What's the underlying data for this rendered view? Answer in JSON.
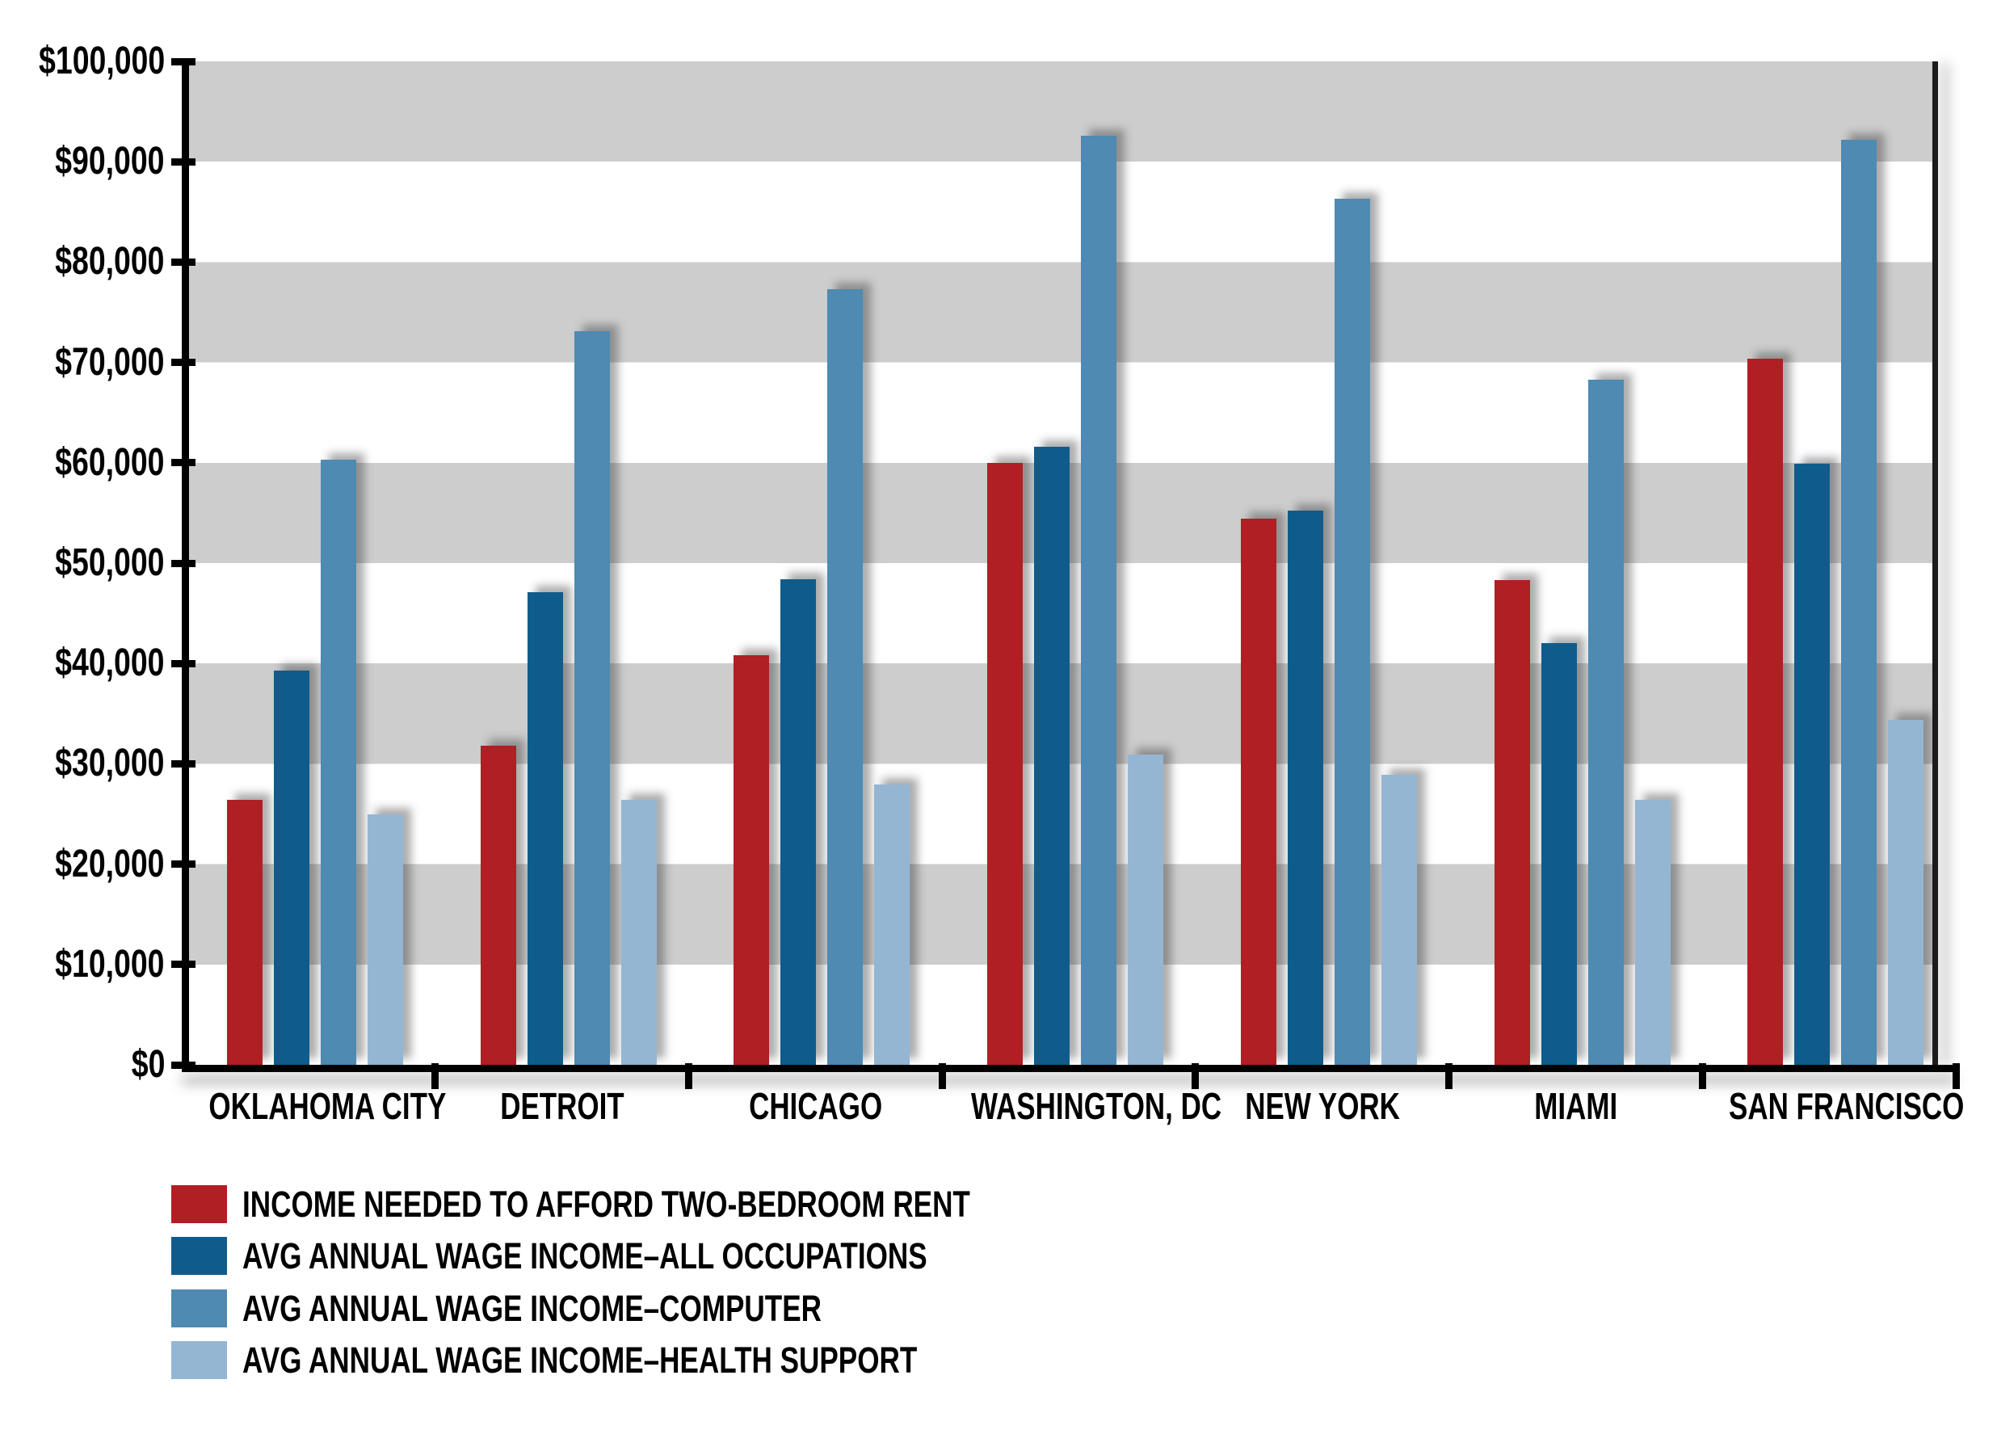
{
  "page": {
    "background": "#ffffff"
  },
  "colors": {
    "stripe_gray": "#cdcdcd",
    "axis_black": "#000000",
    "frame_dark": "#1c1c1c",
    "series_rent_red": "#b01f24",
    "series_all_occupations_blue": "#0f5c8c",
    "series_computer_blue": "#4e8ab1",
    "series_health_support_blue": "#94b6d3"
  },
  "y_axis": {
    "tick_labels": [
      "$100,000",
      "$90,000",
      "$80,000",
      "$70,000",
      "$60,000",
      "$50,000",
      "$40,000",
      "$30,000",
      "$20,000",
      "$10,000",
      "$0"
    ],
    "min": 0,
    "max": 100000,
    "tick_step": 10000
  },
  "x_axis": {
    "categories": [
      "OKLAHOMA CITY",
      "DETROIT",
      "CHICAGO",
      "WASHINGTON, DC",
      "NEW YORK",
      "MIAMI",
      "SAN FRANCISCO"
    ]
  },
  "legend": {
    "items": [
      {
        "label": "INCOME NEEDED TO AFFORD TWO-BEDROOM RENT",
        "color": "#b01f24"
      },
      {
        "label": "AVG ANNUAL WAGE INCOME–ALL OCCUPATIONS",
        "color": "#0f5c8c"
      },
      {
        "label": "AVG ANNUAL WAGE INCOME–COMPUTER",
        "color": "#4e8ab1"
      },
      {
        "label": "AVG ANNUAL WAGE INCOME–HEALTH SUPPORT",
        "color": "#94b6d3"
      }
    ]
  },
  "chart_data": {
    "type": "bar",
    "title": "",
    "xlabel": "",
    "ylabel": "",
    "ylim": [
      0,
      100000
    ],
    "grid": "horizontal gray bands covering 10k-20k, 30k-40k, 50k-60k, 70k-80k, 90k-100k",
    "legend_position": "bottom-left",
    "categories": [
      "OKLAHOMA CITY",
      "DETROIT",
      "CHICAGO",
      "WASHINGTON, DC",
      "NEW YORK",
      "MIAMI",
      "SAN FRANCISCO"
    ],
    "series": [
      {
        "name": "INCOME NEEDED TO AFFORD TWO-BEDROOM RENT",
        "color": "#b01f24",
        "values": [
          26400,
          31800,
          40800,
          60000,
          54400,
          48300,
          70400
        ]
      },
      {
        "name": "AVG ANNUAL WAGE INCOME–ALL OCCUPATIONS",
        "color": "#0f5c8c",
        "values": [
          39300,
          47100,
          48400,
          61600,
          55200,
          42000,
          59900
        ]
      },
      {
        "name": "AVG ANNUAL WAGE INCOME–COMPUTER",
        "color": "#4e8ab1",
        "values": [
          60300,
          73100,
          77300,
          92600,
          86300,
          68300,
          92200
        ]
      },
      {
        "name": "AVG ANNUAL WAGE INCOME–HEALTH SUPPORT",
        "color": "#94b6d3",
        "values": [
          25000,
          26400,
          27900,
          30900,
          28900,
          26400,
          34400
        ]
      }
    ]
  }
}
